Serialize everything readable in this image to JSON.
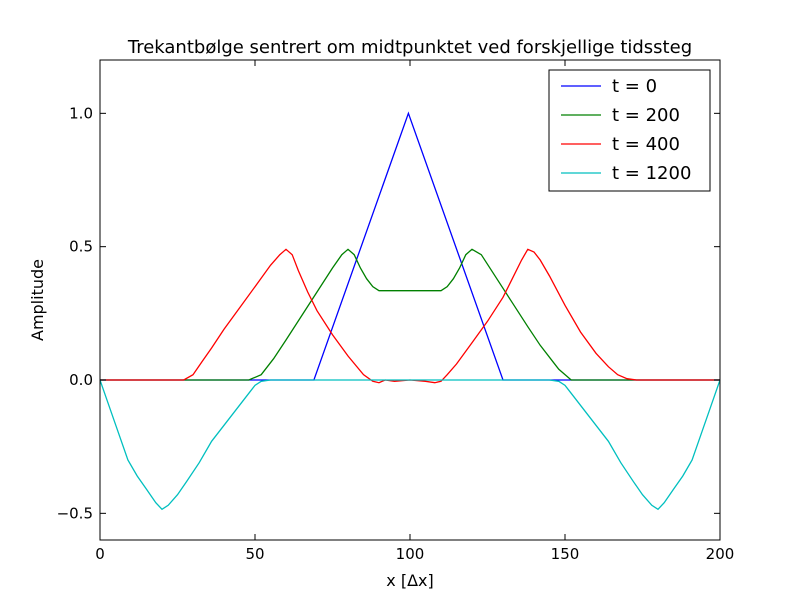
{
  "chart_data": {
    "type": "line",
    "title": "Trekantbølge sentrert om midtpunktet ved forskjellige tidssteg",
    "xlabel": "x [Δx]",
    "ylabel": "Amplitude",
    "xlim": [
      0,
      200
    ],
    "ylim": [
      -0.6,
      1.2
    ],
    "xticks": [
      0,
      50,
      100,
      150,
      200
    ],
    "xtick_labels": [
      "0",
      "50",
      "100",
      "150",
      "200"
    ],
    "yticks": [
      -0.5,
      0.0,
      0.5,
      1.0
    ],
    "ytick_labels": [
      "−0.5",
      "0.0",
      "0.5",
      "1.0"
    ],
    "grid": false,
    "legend_position": "top-right",
    "series": [
      {
        "name": "t = 0",
        "color": "#0000ff",
        "x": [
          0,
          69,
          99.5,
          130,
          200
        ],
        "y": [
          0,
          0,
          1.0,
          0,
          0
        ]
      },
      {
        "name": "t = 200",
        "color": "#008000",
        "x": [
          0,
          48,
          52,
          56,
          60,
          65,
          70,
          75,
          78,
          80,
          82,
          84,
          86,
          88,
          90,
          95,
          100,
          105,
          110,
          112,
          114,
          116,
          118,
          120,
          123,
          128,
          133,
          138,
          142,
          146,
          148,
          152,
          200
        ],
        "y": [
          0,
          0,
          0.02,
          0.08,
          0.15,
          0.24,
          0.33,
          0.42,
          0.47,
          0.49,
          0.47,
          0.42,
          0.38,
          0.35,
          0.335,
          0.335,
          0.335,
          0.335,
          0.335,
          0.35,
          0.38,
          0.42,
          0.47,
          0.49,
          0.47,
          0.38,
          0.29,
          0.2,
          0.13,
          0.07,
          0.04,
          0.0,
          0
        ]
      },
      {
        "name": "t = 400",
        "color": "#ff0000",
        "x": [
          0,
          27,
          30,
          33,
          36,
          40,
          45,
          50,
          55,
          58,
          60,
          62,
          64,
          67,
          70,
          75,
          80,
          85,
          88,
          90,
          92,
          95,
          100,
          105,
          108,
          110,
          112,
          115,
          120,
          125,
          130,
          133,
          136,
          138,
          140,
          142,
          145,
          150,
          155,
          160,
          164,
          167,
          170,
          173,
          200
        ],
        "y": [
          0,
          0,
          0.02,
          0.07,
          0.12,
          0.19,
          0.27,
          0.35,
          0.43,
          0.47,
          0.49,
          0.47,
          0.41,
          0.33,
          0.26,
          0.17,
          0.09,
          0.02,
          -0.005,
          -0.01,
          0.0,
          -0.005,
          0.0,
          -0.005,
          -0.01,
          -0.005,
          0.02,
          0.06,
          0.14,
          0.22,
          0.31,
          0.38,
          0.45,
          0.49,
          0.48,
          0.45,
          0.39,
          0.28,
          0.18,
          0.1,
          0.05,
          0.02,
          0.005,
          0.0,
          0
        ]
      },
      {
        "name": "t = 1200",
        "color": "#00bfbf",
        "x": [
          0,
          3,
          6,
          9,
          12,
          15,
          18,
          20,
          22,
          25,
          28,
          32,
          36,
          40,
          44,
          48,
          50,
          52,
          55,
          60,
          70,
          80,
          90,
          100,
          110,
          120,
          130,
          140,
          145,
          148,
          150,
          152,
          156,
          160,
          164,
          168,
          172,
          175,
          178,
          180,
          182,
          185,
          188,
          191,
          194,
          197,
          200
        ],
        "y": [
          0,
          -0.1,
          -0.2,
          -0.3,
          -0.36,
          -0.41,
          -0.46,
          -0.485,
          -0.47,
          -0.43,
          -0.38,
          -0.31,
          -0.23,
          -0.17,
          -0.11,
          -0.05,
          -0.02,
          -0.005,
          0,
          0,
          0,
          0,
          0,
          0,
          0,
          0,
          0,
          0,
          0,
          -0.005,
          -0.02,
          -0.05,
          -0.11,
          -0.17,
          -0.23,
          -0.31,
          -0.38,
          -0.43,
          -0.47,
          -0.485,
          -0.46,
          -0.41,
          -0.36,
          -0.3,
          -0.2,
          -0.1,
          0
        ]
      }
    ]
  }
}
